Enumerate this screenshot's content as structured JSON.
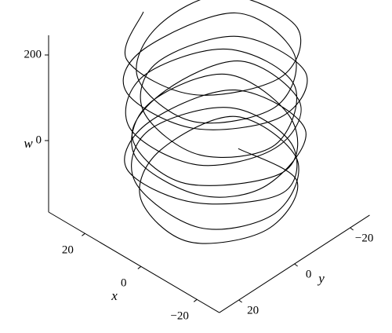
{
  "chart_data": {
    "type": "line3d",
    "x_label": "x",
    "y_label": "y",
    "w_label": "w",
    "xlim": [
      33,
      -28
    ],
    "ylim": [
      27,
      -27
    ],
    "wlim": [
      -167,
      246
    ],
    "xticks": [
      20,
      0,
      {
        "value": -20,
        "label": "−20"
      }
    ],
    "yticks": [
      20,
      0,
      {
        "value": -20,
        "label": "−20"
      }
    ],
    "wticks": [
      0,
      200
    ],
    "color": "#000000",
    "x": [
      24,
      12,
      -10,
      -20,
      -8,
      14,
      22,
      10,
      -12,
      -22,
      -10,
      12,
      23,
      13,
      -9,
      -21,
      -12,
      10,
      21,
      9,
      -13,
      -23,
      -9,
      13,
      24,
      11,
      -11,
      -20,
      -11,
      11,
      20,
      12,
      -10,
      -24,
      -10,
      14,
      23,
      10,
      -12,
      -21,
      -12,
      12,
      22,
      12,
      -9,
      -22,
      -9,
      12,
      24,
      11,
      -13,
      -22,
      -10,
      13,
      21,
      10,
      -10,
      -20,
      -11,
      10
    ],
    "y": [
      2,
      20,
      18,
      -3,
      -21,
      -17,
      -1,
      18,
      20,
      1,
      -18,
      -19,
      3,
      19,
      17,
      -2,
      -20,
      -18,
      0,
      17,
      19,
      2,
      -19,
      -17,
      2,
      20,
      18,
      -1,
      -19,
      -20,
      -2,
      18,
      21,
      0,
      -17,
      -18,
      1,
      19,
      18,
      3,
      -20,
      -19,
      2,
      20,
      17,
      -2,
      -18,
      -17,
      0,
      18,
      19,
      1,
      -19,
      -20,
      -1,
      17,
      20,
      2,
      -18,
      -18
    ],
    "w": [
      230,
      240,
      235,
      225,
      220,
      228,
      190,
      195,
      188,
      180,
      178,
      185,
      150,
      155,
      148,
      140,
      135,
      142,
      115,
      118,
      110,
      100,
      98,
      105,
      80,
      85,
      75,
      68,
      65,
      72,
      45,
      48,
      40,
      32,
      30,
      38,
      15,
      18,
      8,
      2,
      0,
      5,
      -20,
      -15,
      -25,
      -32,
      -35,
      -28,
      -55,
      -50,
      -60,
      -68,
      -72,
      -65,
      -95,
      -90,
      -100,
      -110,
      -115,
      -120
    ]
  }
}
